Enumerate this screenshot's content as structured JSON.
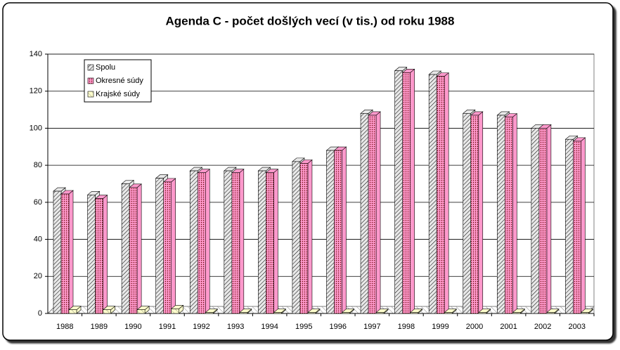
{
  "chart_data": {
    "type": "bar3d",
    "title": "Agenda C - počet došlých vecí (v tis.) od roku 1988",
    "categories": [
      "1988",
      "1989",
      "1990",
      "1991",
      "1992",
      "1993",
      "1994",
      "1995",
      "1996",
      "1997",
      "1998",
      "1999",
      "2000",
      "2001",
      "2002",
      "2003"
    ],
    "series": [
      {
        "name": "Spolu",
        "color": "#e8e8e8",
        "values": [
          66,
          64,
          70,
          73,
          77,
          77,
          77,
          82,
          88,
          108,
          131,
          129,
          108,
          107,
          100,
          94
        ]
      },
      {
        "name": "Okresné súdy",
        "color": "#ff99cc",
        "values": [
          64.5,
          62,
          68,
          71,
          76,
          76,
          76,
          81,
          88,
          107,
          130,
          128,
          107,
          106,
          100,
          93
        ]
      },
      {
        "name": "Krajské súdy",
        "color": "#ffffcc",
        "values": [
          2,
          2,
          2,
          2.5,
          0.5,
          0.5,
          0.5,
          0.5,
          0.5,
          0.5,
          0.5,
          0.5,
          0.5,
          0.5,
          0.5,
          0.5
        ]
      }
    ],
    "ylim": [
      0,
      140
    ],
    "yticks": [
      0,
      20,
      40,
      60,
      80,
      100,
      120,
      140
    ],
    "grid": true,
    "legend": "top-left"
  }
}
